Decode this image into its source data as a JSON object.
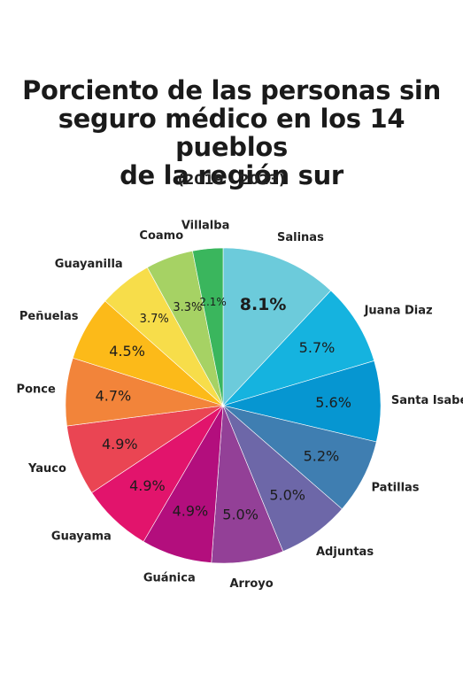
{
  "chart_data": {
    "type": "pie",
    "title_lines": [
      "Porciento de las personas sin",
      "seguro médico en los 14 pueblos",
      "de la región sur"
    ],
    "subtitle": "(2019 - 2023)",
    "legend": "none",
    "start": "12 o'clock, clockwise",
    "slices": [
      {
        "label": "Salinas",
        "value": 8.1,
        "value_label": "8.1%",
        "color": "#6CCBDB"
      },
      {
        "label": "Juana Diaz",
        "value": 5.7,
        "value_label": "5.7%",
        "color": "#15B3DF"
      },
      {
        "label": "Santa Isabel",
        "value": 5.6,
        "value_label": "5.6%",
        "color": "#0696D1"
      },
      {
        "label": "Patillas",
        "value": 5.2,
        "value_label": "5.2%",
        "color": "#3F7EB1"
      },
      {
        "label": "Adjuntas",
        "value": 5.0,
        "value_label": "5.0%",
        "color": "#6D67A8"
      },
      {
        "label": "Arroyo",
        "value": 5.0,
        "value_label": "5.0%",
        "color": "#934097"
      },
      {
        "label": "Guánica",
        "value": 4.9,
        "value_label": "4.9%",
        "color": "#B30E7D"
      },
      {
        "label": "Guayama",
        "value": 4.9,
        "value_label": "4.9%",
        "color": "#E2146C"
      },
      {
        "label": "Yauco",
        "value": 4.9,
        "value_label": "4.9%",
        "color": "#EA4553"
      },
      {
        "label": "Ponce",
        "value": 4.7,
        "value_label": "4.7%",
        "color": "#F2843A"
      },
      {
        "label": "Peñuelas",
        "value": 4.5,
        "value_label": "4.5%",
        "color": "#FCBA19"
      },
      {
        "label": "Guayanilla",
        "value": 3.7,
        "value_label": "3.7%",
        "color": "#F7DD4A"
      },
      {
        "label": "Coamo",
        "value": 3.3,
        "value_label": "3.3%",
        "color": "#A6D264"
      },
      {
        "label": "Villalba",
        "value": 2.1,
        "value_label": "2.1%",
        "color": "#3AB65D"
      }
    ]
  }
}
